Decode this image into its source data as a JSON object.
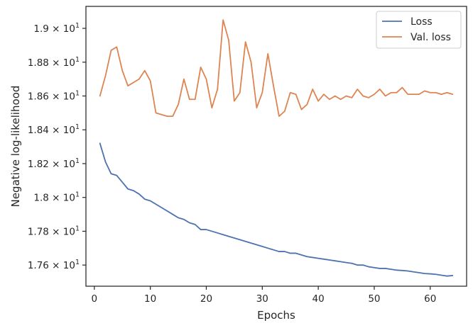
{
  "chart_data": {
    "type": "line",
    "xlabel": "Epochs",
    "ylabel": "Negative log-likelihood",
    "xlim": [
      -1.5,
      66.5
    ],
    "ylim": [
      17.475,
      19.13
    ],
    "x_ticks": [
      {
        "value": 0,
        "label": "0"
      },
      {
        "value": 10,
        "label": "10"
      },
      {
        "value": 20,
        "label": "20"
      },
      {
        "value": 30,
        "label": "30"
      },
      {
        "value": 40,
        "label": "40"
      },
      {
        "value": 50,
        "label": "50"
      },
      {
        "value": 60,
        "label": "60"
      }
    ],
    "y_ticks": [
      {
        "value": 17.6,
        "mantissa": "1.76",
        "base": "× 10",
        "exp": "1"
      },
      {
        "value": 17.8,
        "mantissa": "1.78",
        "base": "× 10",
        "exp": "1"
      },
      {
        "value": 18.0,
        "mantissa": "1.8",
        "base": "× 10",
        "exp": "1"
      },
      {
        "value": 18.2,
        "mantissa": "1.82",
        "base": "× 10",
        "exp": "1"
      },
      {
        "value": 18.4,
        "mantissa": "1.84",
        "base": "× 10",
        "exp": "1"
      },
      {
        "value": 18.6,
        "mantissa": "1.86",
        "base": "× 10",
        "exp": "1"
      },
      {
        "value": 18.8,
        "mantissa": "1.88",
        "base": "× 10",
        "exp": "1"
      },
      {
        "value": 19.0,
        "mantissa": "1.9",
        "base": "× 10",
        "exp": "1"
      }
    ],
    "grid": false,
    "legend_position": "top-right",
    "x": [
      1,
      2,
      3,
      4,
      5,
      6,
      7,
      8,
      9,
      10,
      11,
      12,
      13,
      14,
      15,
      16,
      17,
      18,
      19,
      20,
      21,
      22,
      23,
      24,
      25,
      26,
      27,
      28,
      29,
      30,
      31,
      32,
      33,
      34,
      35,
      36,
      37,
      38,
      39,
      40,
      41,
      42,
      43,
      44,
      45,
      46,
      47,
      48,
      49,
      50,
      51,
      52,
      53,
      54,
      55,
      56,
      57,
      58,
      59,
      60,
      61,
      62,
      63,
      64
    ],
    "series": [
      {
        "name": "Loss",
        "color": "#4c72b0",
        "values": [
          18.32,
          18.21,
          18.14,
          18.13,
          18.09,
          18.05,
          18.04,
          18.02,
          17.99,
          17.98,
          17.96,
          17.94,
          17.92,
          17.9,
          17.88,
          17.87,
          17.85,
          17.84,
          17.81,
          17.81,
          17.8,
          17.79,
          17.78,
          17.77,
          17.76,
          17.75,
          17.74,
          17.73,
          17.72,
          17.71,
          17.7,
          17.69,
          17.68,
          17.68,
          17.67,
          17.67,
          17.66,
          17.65,
          17.645,
          17.64,
          17.635,
          17.63,
          17.625,
          17.62,
          17.615,
          17.61,
          17.6,
          17.6,
          17.59,
          17.585,
          17.58,
          17.58,
          17.575,
          17.57,
          17.568,
          17.565,
          17.56,
          17.555,
          17.55,
          17.548,
          17.545,
          17.54,
          17.535,
          17.538
        ]
      },
      {
        "name": "Val. loss",
        "color": "#dd8452",
        "values": [
          18.6,
          18.72,
          18.87,
          18.89,
          18.75,
          18.66,
          18.68,
          18.7,
          18.75,
          18.69,
          18.5,
          18.49,
          18.48,
          18.48,
          18.55,
          18.7,
          18.58,
          18.58,
          18.77,
          18.7,
          18.53,
          18.64,
          19.05,
          18.93,
          18.57,
          18.62,
          18.92,
          18.8,
          18.53,
          18.62,
          18.85,
          18.66,
          18.48,
          18.51,
          18.62,
          18.61,
          18.52,
          18.55,
          18.64,
          18.57,
          18.61,
          18.58,
          18.6,
          18.58,
          18.6,
          18.59,
          18.64,
          18.6,
          18.59,
          18.61,
          18.64,
          18.6,
          18.62,
          18.62,
          18.65,
          18.61,
          18.61,
          18.61,
          18.63,
          18.62,
          18.62,
          18.61,
          18.62,
          18.61
        ]
      }
    ]
  }
}
